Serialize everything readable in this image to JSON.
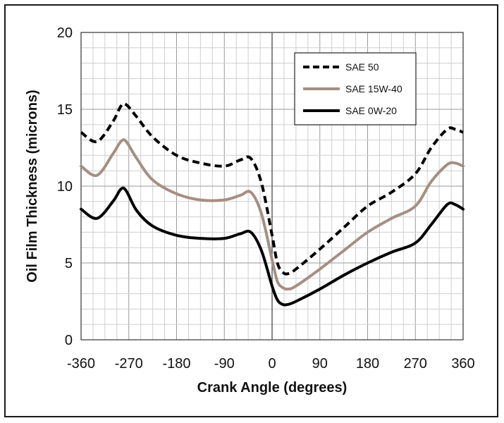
{
  "chart_data": {
    "type": "line",
    "title": "",
    "xlabel": "Crank Angle (degrees)",
    "ylabel": "Oil Film Thickness (microns)",
    "xlim": [
      -360,
      360
    ],
    "ylim": [
      0,
      20
    ],
    "xticks": [
      -360,
      -270,
      -180,
      -90,
      0,
      90,
      180,
      270,
      360
    ],
    "yticks": [
      0,
      5,
      10,
      15,
      20
    ],
    "xtick_labels": [
      "-360",
      "-270",
      "-180",
      "-90",
      "0",
      "90",
      "180",
      "270",
      "360"
    ],
    "ytick_labels": [
      "0",
      "5",
      "10",
      "15",
      "20"
    ],
    "grid": true,
    "legend_position": "top-right",
    "x": [
      -360,
      -330,
      -300,
      -285,
      -275,
      -255,
      -225,
      -180,
      -135,
      -90,
      -60,
      -40,
      -20,
      0,
      10,
      20,
      30,
      45,
      90,
      135,
      180,
      225,
      270,
      300,
      330,
      345,
      360
    ],
    "series": [
      {
        "name": "SAE 50",
        "style": "dashed",
        "color": "#000000",
        "values": [
          13.5,
          12.9,
          14.2,
          15.2,
          15.3,
          14.5,
          13.2,
          12.0,
          11.5,
          11.3,
          11.7,
          11.8,
          10.2,
          6.8,
          5.0,
          4.4,
          4.3,
          4.6,
          5.9,
          7.3,
          8.7,
          9.6,
          10.8,
          12.5,
          13.7,
          13.7,
          13.5
        ]
      },
      {
        "name": "SAE 15W-40",
        "style": "solid",
        "color": "#a58f82",
        "values": [
          11.3,
          10.7,
          12.1,
          12.9,
          12.9,
          11.8,
          10.4,
          9.5,
          9.1,
          9.1,
          9.4,
          9.6,
          8.2,
          5.2,
          3.8,
          3.4,
          3.3,
          3.5,
          4.6,
          5.8,
          7.0,
          7.9,
          8.7,
          10.3,
          11.4,
          11.5,
          11.3
        ]
      },
      {
        "name": "SAE 0W-20",
        "style": "solid",
        "color": "#000000",
        "values": [
          8.5,
          7.9,
          9.0,
          9.8,
          9.7,
          8.4,
          7.4,
          6.8,
          6.6,
          6.6,
          6.9,
          7.0,
          5.8,
          3.5,
          2.6,
          2.3,
          2.3,
          2.5,
          3.3,
          4.2,
          5.0,
          5.7,
          6.3,
          7.5,
          8.8,
          8.8,
          8.5
        ]
      }
    ]
  }
}
